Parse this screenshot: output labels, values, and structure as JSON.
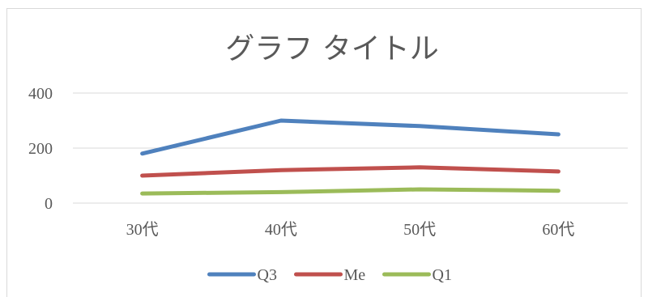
{
  "chart_data": {
    "type": "line",
    "title": "グラフ タイトル",
    "categories": [
      "30代",
      "40代",
      "50代",
      "60代"
    ],
    "y_ticks": [
      "0",
      "200",
      "400"
    ],
    "ylim": [
      0,
      400
    ],
    "grid": true,
    "legend_position": "bottom",
    "series": [
      {
        "name": "Q3",
        "color": "#4f81bd",
        "values": [
          180,
          300,
          280,
          250
        ]
      },
      {
        "name": "Me",
        "color": "#c0504d",
        "values": [
          100,
          120,
          130,
          115
        ]
      },
      {
        "name": "Q1",
        "color": "#9bbb59",
        "values": [
          35,
          40,
          50,
          45
        ]
      }
    ]
  }
}
